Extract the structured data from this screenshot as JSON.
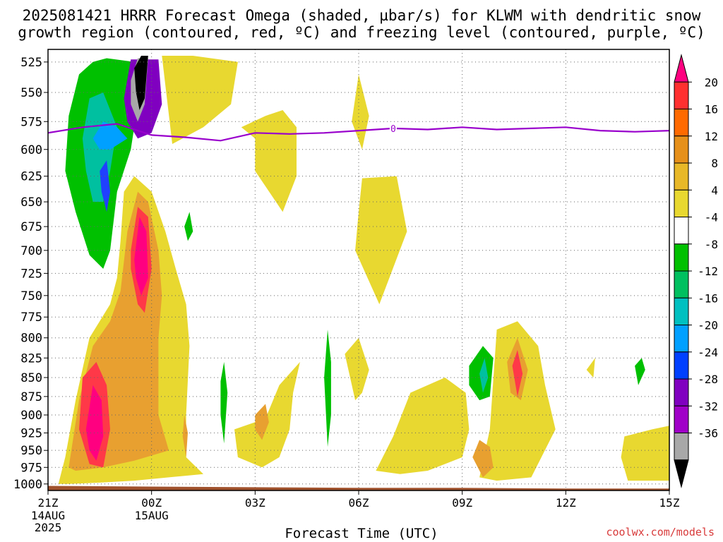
{
  "title_line1": "2025081421 HRRR Forecast Omega (shaded, µbar/s) for KLWM with dendritic snow",
  "title_line2": "growth region (contoured, red, ºC) and freezing level (contoured, purple, ºC)",
  "watermark": "coolwx.com/models",
  "chart_data": {
    "type": "heatmap",
    "title": "2025081421 HRRR Forecast Omega (shaded, µbar/s) for KLWM with dendritic snow growth region (contoured, red, ºC) and freezing level (contoured, purple, ºC)",
    "xlabel": "Forecast Time (UTC)",
    "ylabel": "",
    "x_ticks": [
      "21Z",
      "00Z",
      "03Z",
      "06Z",
      "09Z",
      "12Z",
      "15Z"
    ],
    "x_tick_hours": [
      0,
      3,
      6,
      9,
      12,
      15,
      18
    ],
    "x_sublabels": [
      {
        "hour": 0,
        "lines": [
          "14AUG",
          "2025"
        ]
      },
      {
        "hour": 3,
        "lines": [
          "15AUG"
        ]
      }
    ],
    "xlim_hours": [
      0,
      18
    ],
    "y_ticks": [
      525,
      550,
      575,
      600,
      625,
      650,
      675,
      700,
      725,
      750,
      775,
      800,
      825,
      850,
      875,
      900,
      925,
      950,
      975,
      1000
    ],
    "ylim": [
      515,
      1010
    ],
    "y_scale": "log-pressure, inverted",
    "grid": true,
    "colorbar": {
      "labels": [
        "20",
        "16",
        "12",
        "8",
        "4",
        "-4",
        "-8",
        "-12",
        "-16",
        "-20",
        "-24",
        "-28",
        "-32",
        "-36"
      ],
      "bins": [
        {
          "color": "#ff0080"
        },
        {
          "color": "#ff3030"
        },
        {
          "color": "#ff6a00"
        },
        {
          "color": "#e6901a"
        },
        {
          "color": "#e8b828"
        },
        {
          "color": "#e8d830"
        },
        {
          "color": "#ffffff"
        },
        {
          "color": "#00c000"
        },
        {
          "color": "#00c060"
        },
        {
          "color": "#00c0c0"
        },
        {
          "color": "#00a0ff"
        },
        {
          "color": "#0040ff"
        },
        {
          "color": "#8000c0"
        },
        {
          "color": "#a000c8"
        },
        {
          "color": "#a8a8a8"
        },
        {
          "color": "#000000"
        }
      ]
    },
    "omega_regions": [
      {
        "level": "ylw",
        "pts": [
          [
            0.3,
            1000
          ],
          [
            0.5,
            960
          ],
          [
            0.8,
            880
          ],
          [
            1.2,
            800
          ],
          [
            1.8,
            760
          ],
          [
            2.0,
            730
          ],
          [
            2.1,
            690
          ],
          [
            2.2,
            640
          ],
          [
            2.5,
            625
          ],
          [
            3.0,
            640
          ],
          [
            3.4,
            680
          ],
          [
            3.7,
            720
          ],
          [
            4.0,
            760
          ],
          [
            4.1,
            810
          ],
          [
            4.0,
            900
          ],
          [
            4.0,
            960
          ],
          [
            4.5,
            985
          ],
          [
            3.5,
            990
          ],
          [
            2.5,
            995
          ],
          [
            1.5,
            998
          ],
          [
            0.6,
            1000
          ]
        ]
      },
      {
        "level": "org",
        "pts": [
          [
            0.6,
            975
          ],
          [
            0.9,
            880
          ],
          [
            1.3,
            810
          ],
          [
            1.8,
            780
          ],
          [
            2.1,
            745
          ],
          [
            2.3,
            680
          ],
          [
            2.6,
            640
          ],
          [
            2.9,
            650
          ],
          [
            3.2,
            700
          ],
          [
            3.3,
            750
          ],
          [
            3.2,
            800
          ],
          [
            3.2,
            900
          ],
          [
            3.5,
            950
          ],
          [
            2.5,
            965
          ],
          [
            1.6,
            975
          ],
          [
            0.8,
            980
          ]
        ]
      },
      {
        "level": "red",
        "pts": [
          [
            2.4,
            700
          ],
          [
            2.6,
            655
          ],
          [
            2.9,
            665
          ],
          [
            3.0,
            720
          ],
          [
            2.8,
            770
          ],
          [
            2.6,
            760
          ],
          [
            2.4,
            720
          ]
        ]
      },
      {
        "level": "mag",
        "pts": [
          [
            2.5,
            710
          ],
          [
            2.65,
            665
          ],
          [
            2.85,
            680
          ],
          [
            2.9,
            730
          ],
          [
            2.7,
            750
          ],
          [
            2.55,
            730
          ]
        ]
      },
      {
        "level": "red",
        "pts": [
          [
            0.9,
            920
          ],
          [
            1.0,
            850
          ],
          [
            1.4,
            830
          ],
          [
            1.7,
            860
          ],
          [
            1.8,
            920
          ],
          [
            1.6,
            975
          ],
          [
            1.2,
            970
          ]
        ]
      },
      {
        "level": "mag",
        "pts": [
          [
            1.1,
            920
          ],
          [
            1.3,
            860
          ],
          [
            1.55,
            880
          ],
          [
            1.6,
            930
          ],
          [
            1.4,
            965
          ],
          [
            1.2,
            950
          ]
        ]
      },
      {
        "level": "org",
        "pts": [
          [
            3.9,
            930
          ],
          [
            3.95,
            900
          ],
          [
            4.05,
            925
          ],
          [
            4.0,
            960
          ]
        ]
      },
      {
        "level": "ylw",
        "pts": [
          [
            3.3,
            520
          ],
          [
            4.2,
            520
          ],
          [
            5.5,
            525
          ],
          [
            5.3,
            560
          ],
          [
            4.5,
            580
          ],
          [
            3.6,
            595
          ]
        ]
      },
      {
        "level": "ylw",
        "pts": [
          [
            6.3,
            570
          ],
          [
            6.8,
            565
          ],
          [
            7.2,
            580
          ],
          [
            7.2,
            625
          ],
          [
            6.8,
            660
          ],
          [
            6.0,
            620
          ],
          [
            6.0,
            590
          ],
          [
            5.6,
            580
          ]
        ]
      },
      {
        "level": "ylw",
        "pts": [
          [
            9.0,
            535
          ],
          [
            9.3,
            570
          ],
          [
            9.1,
            600
          ],
          [
            8.8,
            575
          ]
        ]
      },
      {
        "level": "ylw",
        "pts": [
          [
            9.1,
            627
          ],
          [
            10.1,
            625
          ],
          [
            10.4,
            680
          ],
          [
            9.6,
            760
          ],
          [
            8.9,
            700
          ],
          [
            9.0,
            660
          ]
        ]
      },
      {
        "level": "ylw",
        "pts": [
          [
            6.3,
            905
          ],
          [
            6.7,
            860
          ],
          [
            7.3,
            830
          ],
          [
            7.1,
            870
          ],
          [
            7.0,
            920
          ],
          [
            6.7,
            960
          ],
          [
            6.2,
            975
          ],
          [
            5.5,
            960
          ],
          [
            5.4,
            920
          ]
        ]
      },
      {
        "level": "org",
        "pts": [
          [
            6.0,
            900
          ],
          [
            6.3,
            885
          ],
          [
            6.4,
            910
          ],
          [
            6.2,
            935
          ],
          [
            6.0,
            920
          ]
        ]
      },
      {
        "level": "ylw",
        "pts": [
          [
            8.6,
            820
          ],
          [
            9.0,
            800
          ],
          [
            9.3,
            840
          ],
          [
            9.1,
            870
          ],
          [
            8.9,
            880
          ]
        ]
      },
      {
        "level": "ylw",
        "pts": [
          [
            10.0,
            930
          ],
          [
            10.5,
            870
          ],
          [
            11.5,
            850
          ],
          [
            12.1,
            870
          ],
          [
            12.2,
            920
          ],
          [
            12.0,
            960
          ],
          [
            11.0,
            980
          ],
          [
            10.2,
            985
          ],
          [
            9.5,
            980
          ]
        ]
      },
      {
        "level": "ylw",
        "pts": [
          [
            13.0,
            790
          ],
          [
            13.6,
            780
          ],
          [
            14.2,
            810
          ],
          [
            14.4,
            860
          ],
          [
            14.7,
            920
          ],
          [
            14.0,
            990
          ],
          [
            13.0,
            995
          ],
          [
            12.5,
            990
          ],
          [
            12.8,
            920
          ]
        ]
      },
      {
        "level": "org",
        "pts": [
          [
            12.3,
            960
          ],
          [
            12.5,
            935
          ],
          [
            12.8,
            945
          ],
          [
            12.9,
            975
          ],
          [
            12.6,
            990
          ]
        ]
      },
      {
        "level": "org",
        "pts": [
          [
            13.3,
            830
          ],
          [
            13.6,
            800
          ],
          [
            13.9,
            840
          ],
          [
            13.7,
            880
          ],
          [
            13.4,
            870
          ]
        ]
      },
      {
        "level": "red",
        "pts": [
          [
            13.45,
            835
          ],
          [
            13.6,
            815
          ],
          [
            13.75,
            845
          ],
          [
            13.6,
            875
          ]
        ]
      },
      {
        "level": "ylw",
        "pts": [
          [
            15.6,
            840
          ],
          [
            15.85,
            825
          ],
          [
            15.8,
            850
          ]
        ]
      },
      {
        "level": "ylw",
        "pts": [
          [
            16.7,
            930
          ],
          [
            17.5,
            920
          ],
          [
            18.0,
            915
          ],
          [
            18.0,
            995
          ],
          [
            16.8,
            995
          ],
          [
            16.6,
            960
          ]
        ]
      }
    ],
    "negative_regions": [
      {
        "level": "grn",
        "pts": [
          [
            0.6,
            570
          ],
          [
            0.9,
            535
          ],
          [
            1.3,
            525
          ],
          [
            1.7,
            522
          ],
          [
            2.5,
            525
          ],
          [
            2.6,
            560
          ],
          [
            2.4,
            600
          ],
          [
            2.0,
            640
          ],
          [
            1.8,
            700
          ],
          [
            1.6,
            720
          ],
          [
            1.2,
            705
          ],
          [
            0.8,
            660
          ],
          [
            0.5,
            620
          ]
        ]
      },
      {
        "level": "cyn",
        "pts": [
          [
            1.0,
            590
          ],
          [
            1.2,
            555
          ],
          [
            1.6,
            550
          ],
          [
            2.0,
            580
          ],
          [
            1.8,
            620
          ],
          [
            1.6,
            650
          ],
          [
            1.3,
            650
          ],
          [
            1.1,
            620
          ]
        ]
      },
      {
        "level": "blu",
        "pts": [
          [
            1.3,
            590
          ],
          [
            1.6,
            575
          ],
          [
            2.0,
            580
          ],
          [
            2.3,
            590
          ],
          [
            1.8,
            600
          ],
          [
            1.5,
            600
          ]
        ]
      },
      {
        "level": "dblu",
        "pts": [
          [
            1.5,
            620
          ],
          [
            1.7,
            610
          ],
          [
            1.8,
            640
          ],
          [
            1.7,
            660
          ],
          [
            1.55,
            640
          ]
        ]
      },
      {
        "level": "pur",
        "pts": [
          [
            2.2,
            555
          ],
          [
            2.4,
            523
          ],
          [
            3.2,
            523
          ],
          [
            3.3,
            560
          ],
          [
            3.0,
            585
          ],
          [
            2.6,
            590
          ],
          [
            2.3,
            575
          ]
        ]
      },
      {
        "level": "gry",
        "pts": [
          [
            2.4,
            540
          ],
          [
            2.6,
            522
          ],
          [
            2.9,
            522
          ],
          [
            2.8,
            560
          ],
          [
            2.6,
            575
          ],
          [
            2.4,
            560
          ]
        ]
      },
      {
        "level": "blk",
        "pts": [
          [
            2.5,
            530
          ],
          [
            2.7,
            520
          ],
          [
            2.9,
            520
          ],
          [
            2.8,
            555
          ],
          [
            2.65,
            565
          ],
          [
            2.55,
            550
          ]
        ]
      },
      {
        "level": "grn",
        "pts": [
          [
            3.95,
            675
          ],
          [
            4.1,
            660
          ],
          [
            4.2,
            680
          ],
          [
            4.05,
            690
          ]
        ]
      },
      {
        "level": "grn",
        "pts": [
          [
            5.0,
            855
          ],
          [
            5.1,
            830
          ],
          [
            5.2,
            870
          ],
          [
            5.1,
            940
          ],
          [
            5.0,
            900
          ]
        ]
      },
      {
        "level": "grn",
        "pts": [
          [
            8.0,
            850
          ],
          [
            8.1,
            790
          ],
          [
            8.2,
            830
          ],
          [
            8.2,
            900
          ],
          [
            8.1,
            945
          ]
        ]
      },
      {
        "level": "grn",
        "pts": [
          [
            12.2,
            835
          ],
          [
            12.6,
            810
          ],
          [
            12.9,
            825
          ],
          [
            12.8,
            875
          ],
          [
            12.5,
            880
          ],
          [
            12.2,
            860
          ]
        ]
      },
      {
        "level": "cyn",
        "pts": [
          [
            12.5,
            845
          ],
          [
            12.65,
            825
          ],
          [
            12.75,
            850
          ],
          [
            12.6,
            870
          ]
        ]
      },
      {
        "level": "grn",
        "pts": [
          [
            17.0,
            835
          ],
          [
            17.2,
            825
          ],
          [
            17.3,
            840
          ],
          [
            17.1,
            860
          ]
        ]
      }
    ],
    "freezing_level": {
      "label": "0",
      "label_hour": 10,
      "hours": [
        0,
        1,
        2,
        3,
        4,
        5,
        6,
        7,
        8,
        9,
        10,
        11,
        12,
        13,
        14,
        15,
        16,
        17,
        18
      ],
      "pressure": [
        585,
        580,
        577,
        587,
        589,
        592,
        585,
        586,
        585,
        583,
        581,
        582,
        580,
        582,
        581,
        580,
        583,
        584,
        583
      ]
    },
    "terrain_hours": [
      0,
      3,
      6,
      9,
      12,
      15,
      18
    ],
    "terrain_pressure": [
      1003,
      1004,
      1005,
      1006,
      1006,
      1007,
      1007
    ]
  }
}
